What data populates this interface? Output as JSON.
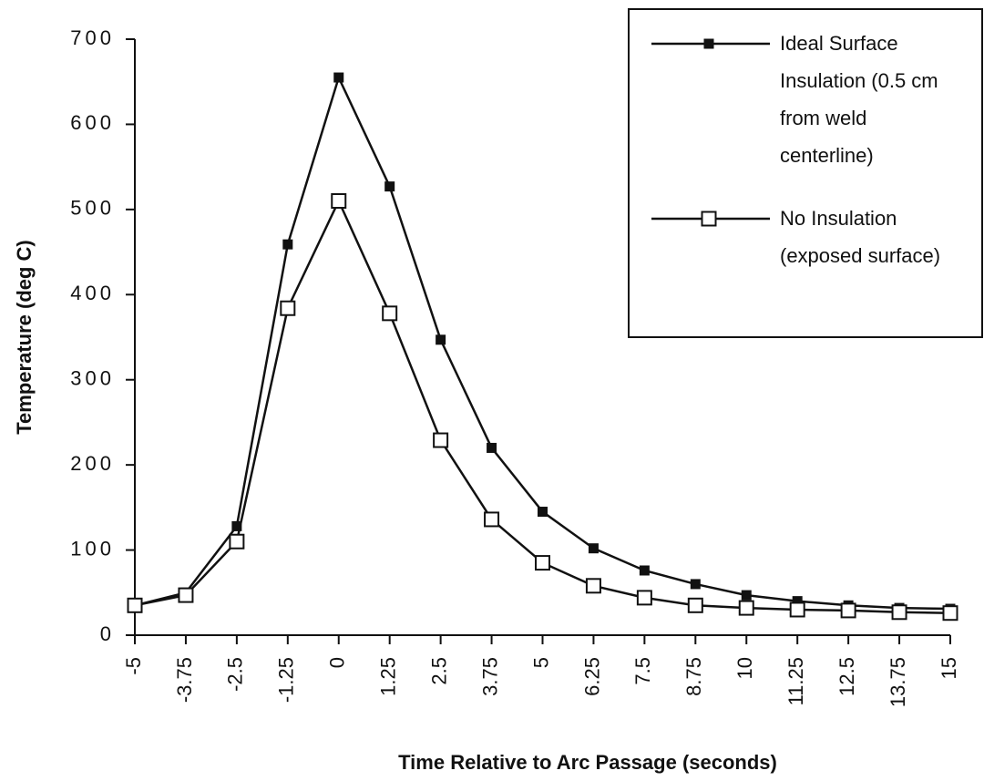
{
  "chart_data": {
    "type": "line",
    "xlabel": "Time Relative to Arc Passage (seconds)",
    "ylabel": "Temperature  (deg  C)",
    "x": [
      -5,
      -3.75,
      -2.5,
      -1.25,
      0,
      1.25,
      2.5,
      3.75,
      5,
      6.25,
      7.5,
      8.75,
      10,
      11.25,
      12.5,
      13.75,
      15
    ],
    "xlim": [
      -5,
      15
    ],
    "xticks": [
      -5,
      -3.75,
      -2.5,
      -1.25,
      0,
      1.25,
      2.5,
      3.75,
      5,
      6.25,
      7.5,
      8.75,
      10,
      11.25,
      12.5,
      13.75,
      15
    ],
    "ylim": [
      0,
      700
    ],
    "yticks": [
      0,
      100,
      200,
      300,
      400,
      500,
      600,
      700
    ],
    "legend": "upper right",
    "series": [
      {
        "name": "Ideal Surface Insulation (0.5 cm from weld centerline)",
        "color": "#111111",
        "marker": "filled-square",
        "values": [
          35,
          50,
          128,
          459,
          655,
          527,
          347,
          220,
          145,
          102,
          76,
          60,
          47,
          40,
          35,
          32,
          31
        ]
      },
      {
        "name": "No Insulation (exposed surface)",
        "color": "#111111",
        "marker": "open-square",
        "values": [
          35,
          47,
          110,
          384,
          510,
          378,
          229,
          136,
          85,
          58,
          44,
          35,
          32,
          30,
          29,
          27,
          26
        ]
      }
    ]
  }
}
